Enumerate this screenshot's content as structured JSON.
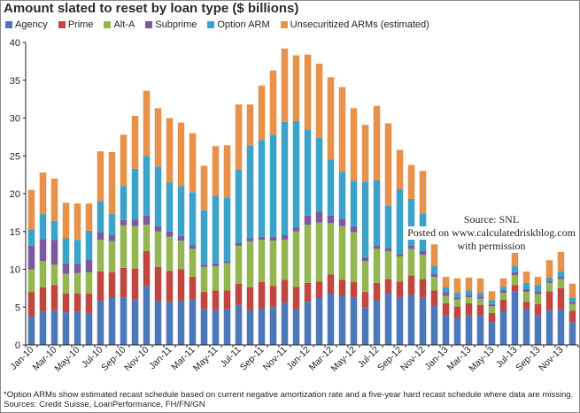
{
  "title": "Amount slated to reset by loan type ($ billions)",
  "legend": [
    {
      "label": "Agency",
      "color": "#4a78b8"
    },
    {
      "label": "Prime",
      "color": "#c0463f"
    },
    {
      "label": "Alt-A",
      "color": "#93b651"
    },
    {
      "label": "Subprime",
      "color": "#7b5b9e"
    },
    {
      "label": "Option ARM",
      "color": "#3ba3c9"
    },
    {
      "label": "Unsecuritized ARMs (estimated)",
      "color": "#e8914a"
    }
  ],
  "chart_data": {
    "type": "bar",
    "stacked": true,
    "title": "Amount slated to reset by loan type ($ billions)",
    "ylim": [
      0,
      40
    ],
    "yticks": [
      0,
      5,
      10,
      15,
      20,
      25,
      30,
      35,
      40
    ],
    "x_tick_labels": [
      "Jan-10",
      "Mar-10",
      "May-10",
      "Jul-10",
      "Sep-10",
      "Nov-10",
      "Jan-11",
      "Mar-11",
      "May-11",
      "Jul-11",
      "Sep-11",
      "Nov-11",
      "Jan-12",
      "Mar-12",
      "May-12",
      "Jul-12",
      "Sep-12",
      "Nov-12",
      "Jan-13",
      "Mar-13",
      "May-13",
      "Jul-13",
      "Sep-13",
      "Nov-13"
    ],
    "categories": [
      "Jan-10",
      "Feb-10",
      "Mar-10",
      "Apr-10",
      "May-10",
      "Jun-10",
      "Jul-10",
      "Aug-10",
      "Sep-10",
      "Oct-10",
      "Nov-10",
      "Dec-10",
      "Jan-11",
      "Feb-11",
      "Mar-11",
      "Apr-11",
      "May-11",
      "Jun-11",
      "Jul-11",
      "Aug-11",
      "Sep-11",
      "Oct-11",
      "Nov-11",
      "Dec-11",
      "Jan-12",
      "Feb-12",
      "Mar-12",
      "Apr-12",
      "May-12",
      "Jun-12",
      "Jul-12",
      "Aug-12",
      "Sep-12",
      "Oct-12",
      "Nov-12",
      "Dec-12",
      "Jan-13",
      "Feb-13",
      "Mar-13",
      "Apr-13",
      "May-13",
      "Jun-13",
      "Jul-13",
      "Aug-13",
      "Sep-13",
      "Oct-13",
      "Nov-13",
      "Dec-13"
    ],
    "series": [
      {
        "name": "Agency",
        "color": "#4a78b8",
        "values": [
          3.8,
          4.4,
          4.6,
          4.3,
          4.4,
          4.2,
          5.8,
          6.2,
          6.3,
          6.0,
          7.8,
          5.8,
          5.7,
          5.8,
          6.0,
          4.7,
          4.6,
          4.7,
          5.3,
          4.6,
          4.8,
          5.0,
          5.6,
          4.7,
          5.7,
          6.2,
          6.9,
          6.5,
          6.3,
          5.0,
          5.9,
          6.9,
          6.3,
          6.6,
          6.3,
          5.2,
          3.9,
          3.6,
          3.9,
          3.9,
          3.0,
          4.5,
          7.1,
          4.7,
          3.9,
          4.6,
          4.7,
          3.0
        ]
      },
      {
        "name": "Prime",
        "color": "#c0463f",
        "values": [
          3.2,
          3.2,
          3.3,
          2.5,
          2.4,
          2.6,
          3.9,
          3.4,
          3.9,
          4.1,
          4.6,
          4.5,
          4.1,
          4.2,
          3.0,
          2.3,
          2.6,
          2.5,
          2.8,
          3.0,
          3.5,
          2.8,
          3.0,
          3.0,
          2.5,
          2.2,
          2.4,
          2.1,
          2.0,
          2.0,
          2.3,
          1.8,
          2.1,
          2.6,
          2.4,
          2.0,
          1.6,
          1.5,
          1.6,
          1.4,
          1.2,
          1.5,
          0.8,
          1.0,
          1.5,
          2.5,
          2.8,
          1.5
        ]
      },
      {
        "name": "Alt-A",
        "color": "#93b651",
        "values": [
          3.0,
          3.5,
          2.7,
          2.6,
          2.7,
          2.8,
          4.2,
          4.1,
          5.6,
          5.6,
          3.5,
          4.7,
          4.5,
          3.8,
          3.7,
          3.3,
          3.2,
          3.6,
          5.0,
          6.1,
          5.6,
          6.0,
          5.3,
          7.3,
          7.7,
          7.8,
          6.8,
          7.1,
          6.6,
          4.1,
          4.5,
          3.7,
          3.3,
          3.5,
          3.2,
          1.8,
          1.0,
          0.9,
          0.8,
          0.8,
          0.9,
          0.9,
          1.3,
          1.3,
          1.3,
          1.1,
          1.2,
          0.9
        ]
      },
      {
        "name": "Subprime",
        "color": "#7b5b9e",
        "values": [
          3.1,
          2.9,
          3.3,
          1.4,
          1.2,
          1.7,
          1.0,
          0.8,
          0.7,
          0.9,
          1.2,
          0.7,
          0.7,
          0.6,
          0.5,
          0.3,
          0.4,
          0.3,
          0.4,
          0.4,
          0.4,
          0.5,
          0.6,
          0.5,
          1.2,
          1.4,
          1.0,
          1.0,
          0.8,
          0.5,
          0.4,
          0.4,
          0.3,
          0.4,
          0.5,
          0.4,
          0.4,
          0.3,
          0.3,
          0.3,
          0.3,
          0.3,
          0.4,
          0.4,
          0.4,
          0.3,
          0.3,
          0.3
        ]
      },
      {
        "name": "Option ARM",
        "color": "#3ba3c9",
        "values": [
          2.2,
          3.3,
          2.5,
          3.3,
          3.2,
          3.8,
          4.1,
          2.8,
          4.5,
          6.7,
          7.9,
          7.9,
          6.5,
          6.6,
          7.0,
          7.2,
          8.9,
          8.4,
          9.7,
          12.3,
          12.8,
          13.5,
          15.0,
          14.1,
          11.4,
          9.8,
          7.4,
          6.2,
          6.0,
          10.0,
          8.7,
          5.6,
          8.6,
          6.2,
          5.0,
          1.1,
          0.7,
          0.6,
          0.6,
          0.5,
          0.5,
          0.5,
          0.8,
          0.8,
          0.8,
          0.4,
          0.7,
          0.5
        ]
      },
      {
        "name": "Unsecuritized ARMs (estimated)",
        "color": "#e8914a",
        "values": [
          5.2,
          5.5,
          5.6,
          4.7,
          4.8,
          3.6,
          6.6,
          8.2,
          6.8,
          7.0,
          8.6,
          7.7,
          8.5,
          8.4,
          7.8,
          5.9,
          6.6,
          6.9,
          8.6,
          5.4,
          7.2,
          8.5,
          9.7,
          8.7,
          9.9,
          9.8,
          10.9,
          11.2,
          9.6,
          7.5,
          9.8,
          10.9,
          5.2,
          4.5,
          5.6,
          2.8,
          1.4,
          1.9,
          1.7,
          1.9,
          1.2,
          1.1,
          2.7,
          1.5,
          1.1,
          2.3,
          2.6,
          1.9
        ]
      }
    ],
    "annotations": [
      "Source: SNL",
      "Posted on www.calculatedriskblog.com",
      "with permission"
    ],
    "grid": false,
    "legend_position": "top"
  },
  "source_note": {
    "line1": "Source: SNL",
    "line2": "Posted on www.calculatedriskblog.com",
    "line3": "with permission"
  },
  "footnote": {
    "line1": "*Option ARMs show estimated recast schedule based on current negative amortization rate and a five-year hard recast schedule where data are missing.",
    "line2": "Sources: Credit Suisse, LoanPerformance, FH/FN/GN"
  }
}
